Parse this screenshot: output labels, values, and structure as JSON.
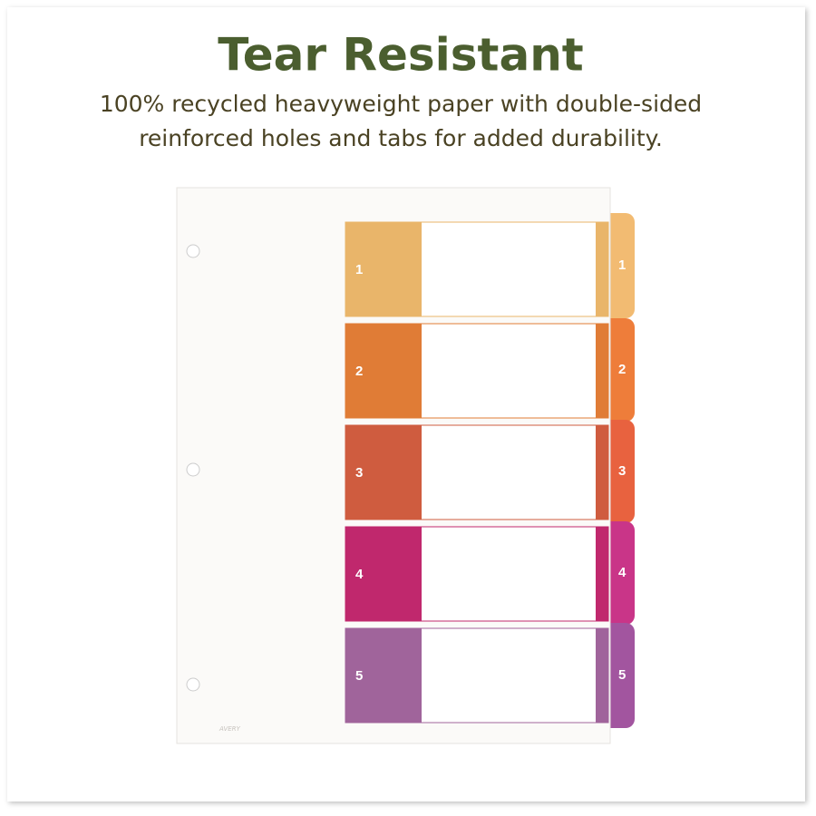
{
  "header": {
    "title": "Tear Resistant",
    "lines": [
      "100% recycled heavyweight paper with double-sided",
      "reinforced holes and tabs for added durability."
    ]
  },
  "tabs": [
    {
      "label": "1"
    },
    {
      "label": "2"
    },
    {
      "label": "3"
    },
    {
      "label": "4"
    },
    {
      "label": "5"
    }
  ],
  "brand": "AVERY"
}
